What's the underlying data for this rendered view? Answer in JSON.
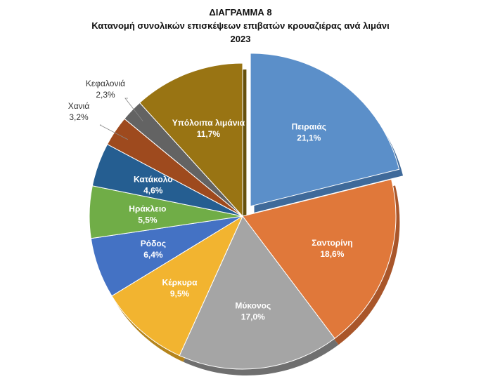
{
  "chart_data": {
    "type": "pie",
    "title": "ΔΙΑΓΡΑΜΜΑ 8",
    "subtitle": "Κατανομή συνολικών επισκέψεων επιβατών κρουαζιέρας ανά λιμάνι",
    "year": "2023",
    "slices": [
      {
        "label": "Πειραιάς",
        "value_label": "21,1%",
        "value": 21.1,
        "color": "#5B8FC9",
        "dark": "#3F6A9A",
        "text_color": "#ffffff",
        "label_inside": true
      },
      {
        "label": "Σαντορίνη",
        "value_label": "18,6%",
        "value": 18.6,
        "color": "#E0783A",
        "dark": "#A9562A",
        "text_color": "#ffffff",
        "label_inside": true
      },
      {
        "label": "Μύκονος",
        "value_label": "17,0%",
        "value": 17.0,
        "color": "#A5A5A5",
        "dark": "#6F6F6F",
        "text_color": "#ffffff",
        "label_inside": true
      },
      {
        "label": "Κέρκυρα",
        "value_label": "9,5%",
        "value": 9.5,
        "color": "#F2B430",
        "dark": "#B5841C",
        "text_color": "#ffffff",
        "label_inside": true
      },
      {
        "label": "Ρόδος",
        "value_label": "6,4%",
        "value": 6.4,
        "color": "#4472C4",
        "dark": "#2D5190",
        "text_color": "#ffffff",
        "label_inside": true
      },
      {
        "label": "Ηράκλειο",
        "value_label": "5,5%",
        "value": 5.5,
        "color": "#70AD47",
        "dark": "#4E7E30",
        "text_color": "#ffffff",
        "label_inside": true
      },
      {
        "label": "Κατάκολο",
        "value_label": "4,6%",
        "value": 4.6,
        "color": "#255E91",
        "dark": "#163D61",
        "text_color": "#ffffff",
        "label_inside": true
      },
      {
        "label": "Χανιά",
        "value_label": "3,2%",
        "value": 3.2,
        "color": "#9E4A1E",
        "dark": "#6A2F12",
        "text_color": "#333333",
        "label_inside": false
      },
      {
        "label": "Κεφαλονιά",
        "value_label": "2,3%",
        "value": 2.3,
        "color": "#636363",
        "dark": "#3F3F3F",
        "text_color": "#333333",
        "label_inside": false
      },
      {
        "label": "Υπόλοιπα λιμάνια",
        "value_label": "11,7%",
        "value": 11.7,
        "color": "#997413",
        "dark": "#66500C",
        "text_color": "#ffffff",
        "label_inside": true
      }
    ],
    "exploded_slice": "Πειραιάς",
    "start_angle_deg": 0,
    "direction": "clockwise",
    "style": "3d"
  }
}
